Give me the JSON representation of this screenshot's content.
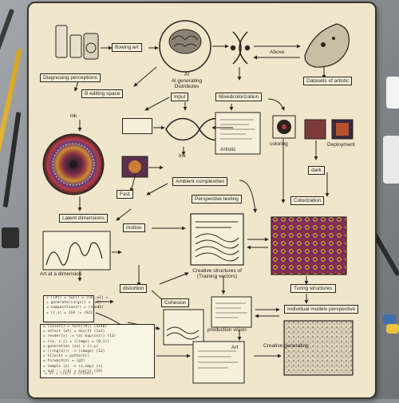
{
  "labels": {
    "flowing": "flowing art",
    "ai_label": "AI",
    "ai_sub": "Al generating\nDistributes",
    "above": "Above",
    "datasets": "Datasets of artistic",
    "diagnosing": "Diagnosing perceptions",
    "editing": "B editing space",
    "input": "Input",
    "neural": "Mixedcolorization",
    "ink_top": "ink",
    "ink_mid": "Ink",
    "dark": "dark",
    "colorizing": "coloring",
    "deployment": "Deployment",
    "artistic": "Artistic",
    "ambient": "Ambient complexities",
    "color_mode": "Colorization",
    "color_generation": "Creative generating",
    "fast": "Fast",
    "perspective": "Perspective testing",
    "latent": "Latent dimensions",
    "motion": "motion",
    "grid_art": "Art at a dimension",
    "creative_sub": "Creative structures of\n(Training vectors)",
    "distortion": "distortion",
    "turing": "Turing structures",
    "textual": "Individual models perspective",
    "cohesion": "Cohesion",
    "production": "production vision",
    "art_bottom": "Art"
  },
  "code_lines": {
    "left_small": [
      "= ((#)) = (w1)) = (lm1,w1) =",
      "= generate((args)) = (w2)",
      "= composition(r) = (seedD)",
      "= (r,x) = 110 := (S22)"
    ],
    "left_big": [
      "= (colors) = fore((#)) (5x40)",
      "= select (wt) = dis(f) (1x2)",
      "= render(x) := (a) map(colr) (11)",
      "= (cx, c.j) = ((imgx) = (0,1))",
      "= generation (sx) = (c,y)",
      "= ((rng(a))) -> (image) (12)",
      "= tile(k) = pattern()",
      "= forward(z) = (gt)",
      "= sample (z) -> (z,cmp) (x)",
      "= out :: ((k) = (cor)) (19)",
      "= xl = ((x)) = (final)"
    ]
  },
  "colors": {
    "paper": "#efe6cc",
    "ink": "#2a241c",
    "accent_red": "#b5383a",
    "accent_purple": "#6b3d8a"
  }
}
